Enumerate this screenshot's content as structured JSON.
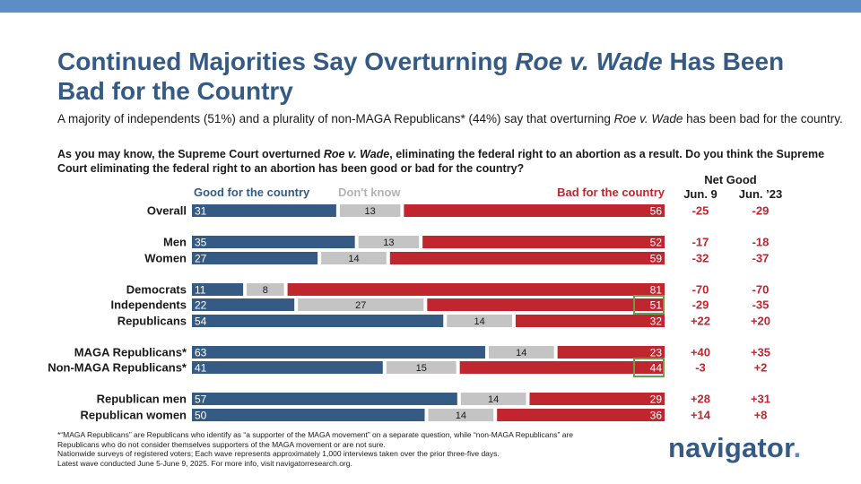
{
  "header": {
    "title_part1": "Continued Majorities Say Overturning ",
    "title_italic": "Roe v. Wade",
    "title_part2": " Has Been Bad for the Country",
    "subtitle_part1": "A majority of independents (51%) and a plurality of non-MAGA Republicans* (44%) say that overturning ",
    "subtitle_italic": "Roe v. Wade",
    "subtitle_part2": " has been bad for the country.",
    "question_part1": "As you may know, the Supreme Court overturned ",
    "question_italic": "Roe v. Wade",
    "question_part2": ", eliminating the federal right to an abortion as a result. Do you think the Supreme Court eliminating the federal right to an abortion has been good or bad for the country?"
  },
  "colors": {
    "good": "#355b85",
    "dont_know": "#c4c4c4",
    "bad": "#c0262d",
    "net": "#c0262d",
    "highlight": "#6a9e4f",
    "legend_dk": "#b3b3b3"
  },
  "chart_data": {
    "type": "bar",
    "subtype": "stacked-horizontal-100",
    "legend": [
      "Good for the country",
      "Don't know",
      "Bad for the country"
    ],
    "net_header": "Net Good",
    "net_columns": [
      "Jun. 9",
      "Jun. ’23"
    ],
    "rows": [
      {
        "label": "Overall",
        "good": 31,
        "dk": 13,
        "bad": 56,
        "net_jun9": "-25",
        "net_jun23": "-29",
        "highlight_bad": false
      },
      {
        "label": "Men",
        "good": 35,
        "dk": 13,
        "bad": 52,
        "net_jun9": "-17",
        "net_jun23": "-18",
        "highlight_bad": false
      },
      {
        "label": "Women",
        "good": 27,
        "dk": 14,
        "bad": 59,
        "net_jun9": "-32",
        "net_jun23": "-37",
        "highlight_bad": false
      },
      {
        "label": "Democrats",
        "good": 11,
        "dk": 8,
        "bad": 81,
        "net_jun9": "-70",
        "net_jun23": "-70",
        "highlight_bad": false
      },
      {
        "label": "Independents",
        "good": 22,
        "dk": 27,
        "bad": 51,
        "net_jun9": "-29",
        "net_jun23": "-35",
        "highlight_bad": true
      },
      {
        "label": "Republicans",
        "good": 54,
        "dk": 14,
        "bad": 32,
        "net_jun9": "+22",
        "net_jun23": "+20",
        "highlight_bad": false
      },
      {
        "label": "MAGA Republicans*",
        "good": 63,
        "dk": 14,
        "bad": 23,
        "net_jun9": "+40",
        "net_jun23": "+35",
        "highlight_bad": false
      },
      {
        "label": "Non-MAGA Republicans*",
        "good": 41,
        "dk": 15,
        "bad": 44,
        "net_jun9": "-3",
        "net_jun23": "+2",
        "highlight_bad": true
      },
      {
        "label": "Republican men",
        "good": 57,
        "dk": 14,
        "bad": 29,
        "net_jun9": "+28",
        "net_jun23": "+31",
        "highlight_bad": false
      },
      {
        "label": "Republican women",
        "good": 50,
        "dk": 14,
        "bad": 36,
        "net_jun9": "+14",
        "net_jun23": "+8",
        "highlight_bad": false
      }
    ]
  },
  "footnote": {
    "line1": "*“MAGA Republicans” are Republicans who identify as “a supporter of the MAGA movement” on a separate question, while “non-MAGA Republicans” are Republicans who do not consider themselves supporters of the MAGA movement or are not sure.",
    "line2": "Nationwide surveys of registered voters; Each wave represents approximately 1,000 interviews taken over the prior three-five days.",
    "line3": "Latest wave conducted June 5-June 9, 2025. For more info, visit navigatorresearch.org."
  },
  "brand": {
    "logo_text": "navigator",
    "logo_dot": "."
  }
}
